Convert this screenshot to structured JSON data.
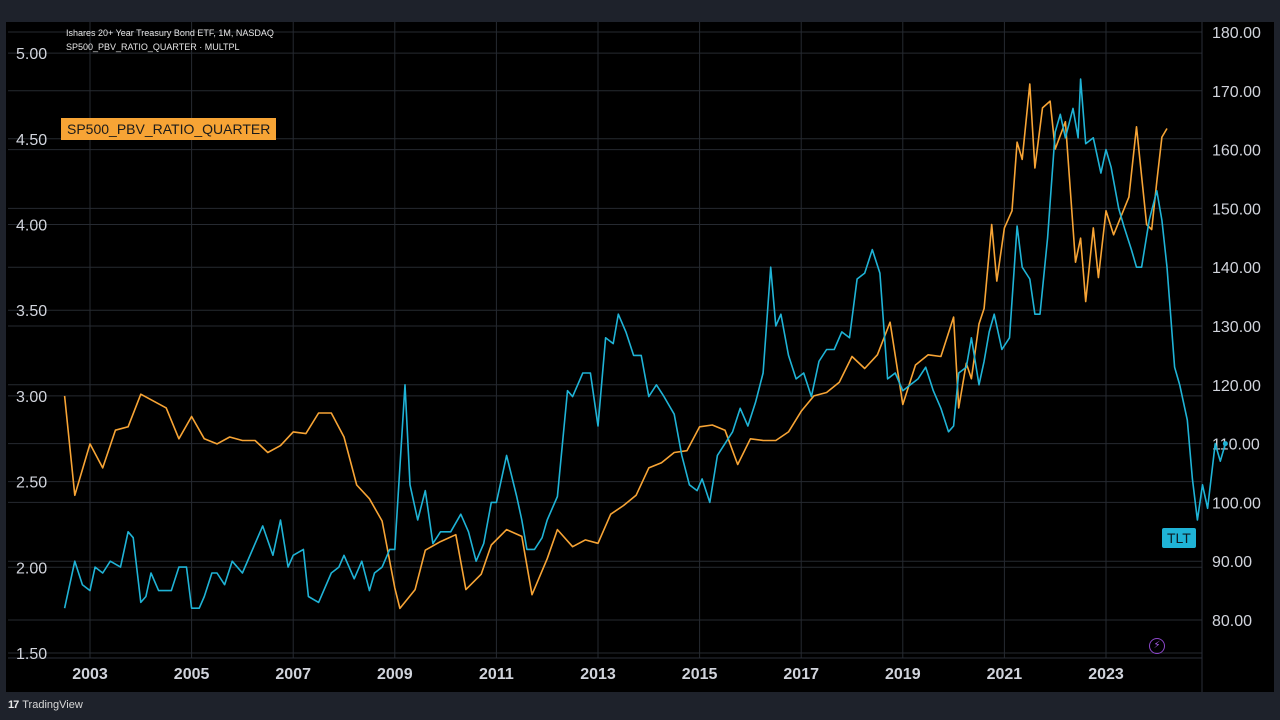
{
  "legend": {
    "line1": "Ishares 20+ Year Treasury Bond ETF, 1M, NASDAQ",
    "line2": "SP500_PBV_RATIO_QUARTER · MULTPL"
  },
  "series_label": "SP500_PBV_RATIO_QUARTER",
  "tlt_badge": "TLT",
  "brand": {
    "mark": "17",
    "name": "TradingView",
    "icon": "tradingview-logo-icon"
  },
  "bolt_icon": "lightning-bolt-icon",
  "colors": {
    "pbv": "#f7a435",
    "tlt": "#1fb3d6",
    "grid": "#262a31",
    "axis_text": "#d1d4dc"
  },
  "chart_data": {
    "type": "line",
    "grid": true,
    "x_ticks": [
      "2003",
      "2005",
      "2007",
      "2009",
      "2011",
      "2013",
      "2015",
      "2017",
      "2019",
      "2021",
      "2023"
    ],
    "left_axis": {
      "ticks": [
        "5.00",
        "4.50",
        "4.00",
        "3.50",
        "3.00",
        "2.50",
        "2.00",
        "1.50"
      ],
      "range": [
        1.5,
        5.0
      ]
    },
    "right_axis": {
      "ticks": [
        "180.00",
        "170.00",
        "160.00",
        "150.00",
        "140.00",
        "130.00",
        "120.00",
        "110.00",
        "100.00",
        "90.00",
        "80.00"
      ],
      "range": [
        80,
        180
      ]
    },
    "series": [
      {
        "name": "SP500_PBV_RATIO_QUARTER",
        "axis": "left",
        "color": "#f7a435",
        "points": [
          [
            2002.5,
            3.0
          ],
          [
            2002.7,
            2.42
          ],
          [
            2003.0,
            2.72
          ],
          [
            2003.25,
            2.58
          ],
          [
            2003.5,
            2.8
          ],
          [
            2003.75,
            2.82
          ],
          [
            2004.0,
            3.01
          ],
          [
            2004.5,
            2.93
          ],
          [
            2004.75,
            2.75
          ],
          [
            2005.0,
            2.88
          ],
          [
            2005.25,
            2.75
          ],
          [
            2005.5,
            2.72
          ],
          [
            2005.75,
            2.76
          ],
          [
            2006.0,
            2.74
          ],
          [
            2006.25,
            2.74
          ],
          [
            2006.5,
            2.67
          ],
          [
            2006.75,
            2.71
          ],
          [
            2007.0,
            2.79
          ],
          [
            2007.25,
            2.78
          ],
          [
            2007.5,
            2.9
          ],
          [
            2007.75,
            2.9
          ],
          [
            2008.0,
            2.76
          ],
          [
            2008.25,
            2.48
          ],
          [
            2008.5,
            2.4
          ],
          [
            2008.75,
            2.27
          ],
          [
            2009.0,
            1.88
          ],
          [
            2009.1,
            1.76
          ],
          [
            2009.4,
            1.87
          ],
          [
            2009.6,
            2.1
          ],
          [
            2009.9,
            2.15
          ],
          [
            2010.2,
            2.19
          ],
          [
            2010.4,
            1.87
          ],
          [
            2010.7,
            1.96
          ],
          [
            2010.9,
            2.13
          ],
          [
            2011.2,
            2.22
          ],
          [
            2011.5,
            2.18
          ],
          [
            2011.7,
            1.84
          ],
          [
            2012.0,
            2.05
          ],
          [
            2012.2,
            2.22
          ],
          [
            2012.5,
            2.12
          ],
          [
            2012.75,
            2.16
          ],
          [
            2013.0,
            2.14
          ],
          [
            2013.25,
            2.31
          ],
          [
            2013.5,
            2.36
          ],
          [
            2013.75,
            2.42
          ],
          [
            2014.0,
            2.58
          ],
          [
            2014.25,
            2.61
          ],
          [
            2014.5,
            2.67
          ],
          [
            2014.75,
            2.68
          ],
          [
            2015.0,
            2.82
          ],
          [
            2015.25,
            2.83
          ],
          [
            2015.5,
            2.8
          ],
          [
            2015.75,
            2.6
          ],
          [
            2016.0,
            2.75
          ],
          [
            2016.25,
            2.74
          ],
          [
            2016.5,
            2.74
          ],
          [
            2016.75,
            2.79
          ],
          [
            2017.0,
            2.91
          ],
          [
            2017.25,
            3.0
          ],
          [
            2017.5,
            3.02
          ],
          [
            2017.75,
            3.08
          ],
          [
            2018.0,
            3.23
          ],
          [
            2018.25,
            3.16
          ],
          [
            2018.5,
            3.24
          ],
          [
            2018.75,
            3.43
          ],
          [
            2019.0,
            2.95
          ],
          [
            2019.25,
            3.18
          ],
          [
            2019.5,
            3.24
          ],
          [
            2019.75,
            3.23
          ],
          [
            2020.0,
            3.46
          ],
          [
            2020.1,
            2.93
          ],
          [
            2020.25,
            3.19
          ],
          [
            2020.35,
            3.1
          ],
          [
            2020.5,
            3.42
          ],
          [
            2020.6,
            3.51
          ],
          [
            2020.75,
            4.0
          ],
          [
            2020.85,
            3.67
          ],
          [
            2021.0,
            3.98
          ],
          [
            2021.15,
            4.08
          ],
          [
            2021.25,
            4.48
          ],
          [
            2021.35,
            4.38
          ],
          [
            2021.5,
            4.82
          ],
          [
            2021.6,
            4.33
          ],
          [
            2021.75,
            4.68
          ],
          [
            2021.9,
            4.72
          ],
          [
            2022.0,
            4.44
          ],
          [
            2022.2,
            4.6
          ],
          [
            2022.4,
            3.78
          ],
          [
            2022.5,
            3.92
          ],
          [
            2022.6,
            3.55
          ],
          [
            2022.75,
            3.98
          ],
          [
            2022.85,
            3.69
          ],
          [
            2023.0,
            4.08
          ],
          [
            2023.15,
            3.94
          ],
          [
            2023.3,
            4.05
          ],
          [
            2023.45,
            4.16
          ],
          [
            2023.6,
            4.57
          ],
          [
            2023.8,
            4.0
          ],
          [
            2023.9,
            3.97
          ],
          [
            2024.0,
            4.25
          ],
          [
            2024.1,
            4.51
          ],
          [
            2024.2,
            4.56
          ]
        ]
      },
      {
        "name": "TLT",
        "axis": "right",
        "color": "#1fb3d6",
        "points": [
          [
            2002.5,
            82
          ],
          [
            2002.7,
            90
          ],
          [
            2002.85,
            86
          ],
          [
            2003.0,
            85
          ],
          [
            2003.1,
            89
          ],
          [
            2003.25,
            88
          ],
          [
            2003.4,
            90
          ],
          [
            2003.6,
            89
          ],
          [
            2003.75,
            95
          ],
          [
            2003.85,
            94
          ],
          [
            2004.0,
            83
          ],
          [
            2004.1,
            84
          ],
          [
            2004.2,
            88
          ],
          [
            2004.35,
            85
          ],
          [
            2004.6,
            85
          ],
          [
            2004.75,
            89
          ],
          [
            2004.9,
            89
          ],
          [
            2005.0,
            82
          ],
          [
            2005.15,
            82
          ],
          [
            2005.25,
            84
          ],
          [
            2005.4,
            88
          ],
          [
            2005.5,
            88
          ],
          [
            2005.65,
            86
          ],
          [
            2005.8,
            90
          ],
          [
            2006.0,
            88
          ],
          [
            2006.25,
            93
          ],
          [
            2006.4,
            96
          ],
          [
            2006.6,
            91
          ],
          [
            2006.75,
            97
          ],
          [
            2006.9,
            89
          ],
          [
            2007.0,
            91
          ],
          [
            2007.2,
            92
          ],
          [
            2007.3,
            84
          ],
          [
            2007.5,
            83
          ],
          [
            2007.75,
            88
          ],
          [
            2007.9,
            89
          ],
          [
            2008.0,
            91
          ],
          [
            2008.2,
            87
          ],
          [
            2008.35,
            90
          ],
          [
            2008.5,
            85
          ],
          [
            2008.6,
            88
          ],
          [
            2008.75,
            89
          ],
          [
            2008.9,
            92
          ],
          [
            2009.0,
            92
          ],
          [
            2009.2,
            120
          ],
          [
            2009.3,
            103
          ],
          [
            2009.45,
            97
          ],
          [
            2009.6,
            102
          ],
          [
            2009.75,
            93
          ],
          [
            2009.9,
            95
          ],
          [
            2010.1,
            95
          ],
          [
            2010.3,
            98
          ],
          [
            2010.45,
            95
          ],
          [
            2010.6,
            90
          ],
          [
            2010.75,
            93
          ],
          [
            2010.9,
            100
          ],
          [
            2011.0,
            100
          ],
          [
            2011.2,
            108
          ],
          [
            2011.4,
            101
          ],
          [
            2011.5,
            97
          ],
          [
            2011.6,
            92
          ],
          [
            2011.75,
            92
          ],
          [
            2011.9,
            94
          ],
          [
            2012.0,
            97
          ],
          [
            2012.2,
            101
          ],
          [
            2012.4,
            119
          ],
          [
            2012.5,
            118
          ],
          [
            2012.7,
            122
          ],
          [
            2012.85,
            122
          ],
          [
            2013.0,
            113
          ],
          [
            2013.15,
            128
          ],
          [
            2013.3,
            127
          ],
          [
            2013.4,
            132
          ],
          [
            2013.55,
            129
          ],
          [
            2013.7,
            125
          ],
          [
            2013.85,
            125
          ],
          [
            2014.0,
            118
          ],
          [
            2014.15,
            120
          ],
          [
            2014.3,
            118
          ],
          [
            2014.5,
            115
          ],
          [
            2014.65,
            108
          ],
          [
            2014.8,
            103
          ],
          [
            2014.95,
            102
          ],
          [
            2015.05,
            104
          ],
          [
            2015.2,
            100
          ],
          [
            2015.35,
            108
          ],
          [
            2015.5,
            110
          ],
          [
            2015.65,
            112
          ],
          [
            2015.8,
            116
          ],
          [
            2015.95,
            113
          ],
          [
            2016.1,
            117
          ],
          [
            2016.25,
            122
          ],
          [
            2016.4,
            140
          ],
          [
            2016.5,
            130
          ],
          [
            2016.6,
            132
          ],
          [
            2016.75,
            125
          ],
          [
            2016.9,
            121
          ],
          [
            2017.05,
            122
          ],
          [
            2017.2,
            118
          ],
          [
            2017.35,
            124
          ],
          [
            2017.5,
            126
          ],
          [
            2017.65,
            126
          ],
          [
            2017.8,
            129
          ],
          [
            2017.95,
            128
          ],
          [
            2018.1,
            138
          ],
          [
            2018.25,
            139
          ],
          [
            2018.4,
            143
          ],
          [
            2018.55,
            139
          ],
          [
            2018.7,
            121
          ],
          [
            2018.85,
            122
          ],
          [
            2019.0,
            119
          ],
          [
            2019.15,
            120
          ],
          [
            2019.3,
            121
          ],
          [
            2019.45,
            123
          ],
          [
            2019.6,
            119
          ],
          [
            2019.75,
            116
          ],
          [
            2019.9,
            112
          ],
          [
            2020.0,
            113
          ],
          [
            2020.1,
            122
          ],
          [
            2020.25,
            123
          ],
          [
            2020.35,
            128
          ],
          [
            2020.5,
            120
          ],
          [
            2020.6,
            124
          ],
          [
            2020.7,
            129
          ],
          [
            2020.8,
            132
          ],
          [
            2020.95,
            126
          ],
          [
            2021.1,
            128
          ],
          [
            2021.25,
            147
          ],
          [
            2021.35,
            140
          ],
          [
            2021.5,
            138
          ],
          [
            2021.6,
            132
          ],
          [
            2021.7,
            132
          ],
          [
            2021.85,
            145
          ],
          [
            2022.0,
            163
          ],
          [
            2022.1,
            166
          ],
          [
            2022.2,
            162
          ],
          [
            2022.35,
            167
          ],
          [
            2022.45,
            162
          ],
          [
            2022.5,
            172
          ],
          [
            2022.6,
            161
          ],
          [
            2022.75,
            162
          ],
          [
            2022.9,
            156
          ],
          [
            2023.0,
            160
          ],
          [
            2023.1,
            157
          ],
          [
            2023.25,
            150
          ],
          [
            2023.35,
            147
          ],
          [
            2023.5,
            143
          ],
          [
            2023.6,
            140
          ],
          [
            2023.7,
            140
          ],
          [
            2023.85,
            148
          ],
          [
            2024.0,
            153
          ],
          [
            2024.1,
            148
          ],
          [
            2024.2,
            140
          ],
          [
            2024.35,
            123
          ],
          [
            2024.45,
            120
          ],
          [
            2024.6,
            114
          ],
          [
            2024.7,
            104
          ],
          [
            2024.8,
            97
          ],
          [
            2024.9,
            103
          ],
          [
            2025.0,
            99
          ],
          [
            2025.15,
            110
          ],
          [
            2025.25,
            107
          ],
          [
            2025.35,
            110
          ]
        ]
      }
    ]
  }
}
